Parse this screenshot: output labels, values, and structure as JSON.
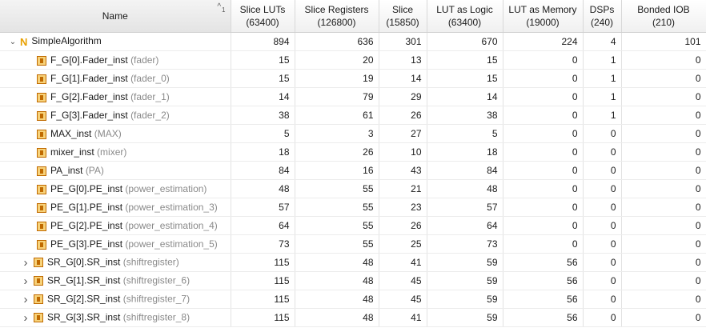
{
  "columns": [
    {
      "label": "Name",
      "sub": ""
    },
    {
      "label": "Slice LUTs",
      "sub": "(63400)"
    },
    {
      "label": "Slice Registers",
      "sub": "(126800)"
    },
    {
      "label": "Slice",
      "sub": "(15850)"
    },
    {
      "label": "LUT as Logic",
      "sub": "(63400)"
    },
    {
      "label": "LUT as Memory",
      "sub": "(19000)"
    },
    {
      "label": "DSPs",
      "sub": "(240)"
    },
    {
      "label": "Bonded IOB",
      "sub": "(210)"
    }
  ],
  "sort": {
    "glyph": "^",
    "order": "1"
  },
  "rows": [
    {
      "name": "SimpleAlgorithm",
      "type": "",
      "vals": [
        "894",
        "636",
        "301",
        "670",
        "224",
        "4",
        "101"
      ]
    },
    {
      "name": "F_G[0].Fader_inst",
      "type": "(fader)",
      "vals": [
        "15",
        "20",
        "13",
        "15",
        "0",
        "1",
        "0"
      ]
    },
    {
      "name": "F_G[1].Fader_inst",
      "type": "(fader_0)",
      "vals": [
        "15",
        "19",
        "14",
        "15",
        "0",
        "1",
        "0"
      ]
    },
    {
      "name": "F_G[2].Fader_inst",
      "type": "(fader_1)",
      "vals": [
        "14",
        "79",
        "29",
        "14",
        "0",
        "1",
        "0"
      ]
    },
    {
      "name": "F_G[3].Fader_inst",
      "type": "(fader_2)",
      "vals": [
        "38",
        "61",
        "26",
        "38",
        "0",
        "1",
        "0"
      ]
    },
    {
      "name": "MAX_inst",
      "type": "(MAX)",
      "vals": [
        "5",
        "3",
        "27",
        "5",
        "0",
        "0",
        "0"
      ]
    },
    {
      "name": "mixer_inst",
      "type": "(mixer)",
      "vals": [
        "18",
        "26",
        "10",
        "18",
        "0",
        "0",
        "0"
      ]
    },
    {
      "name": "PA_inst",
      "type": "(PA)",
      "vals": [
        "84",
        "16",
        "43",
        "84",
        "0",
        "0",
        "0"
      ]
    },
    {
      "name": "PE_G[0].PE_inst",
      "type": "(power_estimation)",
      "vals": [
        "48",
        "55",
        "21",
        "48",
        "0",
        "0",
        "0"
      ]
    },
    {
      "name": "PE_G[1].PE_inst",
      "type": "(power_estimation_3)",
      "vals": [
        "57",
        "55",
        "23",
        "57",
        "0",
        "0",
        "0"
      ]
    },
    {
      "name": "PE_G[2].PE_inst",
      "type": "(power_estimation_4)",
      "vals": [
        "64",
        "55",
        "26",
        "64",
        "0",
        "0",
        "0"
      ]
    },
    {
      "name": "PE_G[3].PE_inst",
      "type": "(power_estimation_5)",
      "vals": [
        "73",
        "55",
        "25",
        "73",
        "0",
        "0",
        "0"
      ]
    },
    {
      "name": "SR_G[0].SR_inst",
      "type": "(shiftregister)",
      "vals": [
        "115",
        "48",
        "41",
        "59",
        "56",
        "0",
        "0"
      ]
    },
    {
      "name": "SR_G[1].SR_inst",
      "type": "(shiftregister_6)",
      "vals": [
        "115",
        "48",
        "45",
        "59",
        "56",
        "0",
        "0"
      ]
    },
    {
      "name": "SR_G[2].SR_inst",
      "type": "(shiftregister_7)",
      "vals": [
        "115",
        "48",
        "45",
        "59",
        "56",
        "0",
        "0"
      ]
    },
    {
      "name": "SR_G[3].SR_inst",
      "type": "(shiftregister_8)",
      "vals": [
        "115",
        "48",
        "41",
        "59",
        "56",
        "0",
        "0"
      ]
    }
  ],
  "icons": {
    "top_module": "top-module-icon",
    "module": "module-icon",
    "expanded": "chevron-down-icon",
    "collapsed": "chevron-right-icon"
  }
}
